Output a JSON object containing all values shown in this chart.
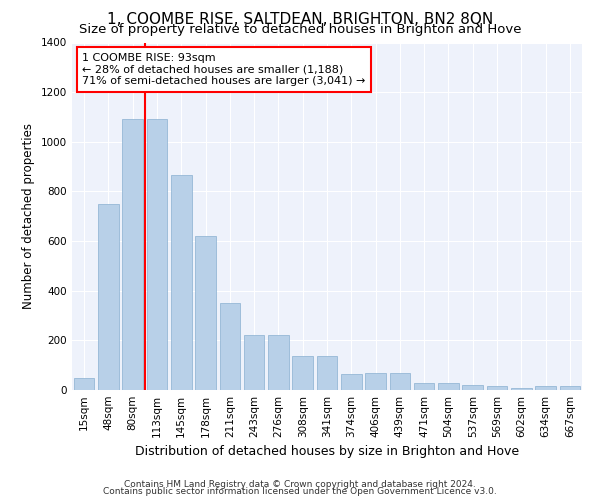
{
  "title": "1, COOMBE RISE, SALTDEAN, BRIGHTON, BN2 8QN",
  "subtitle": "Size of property relative to detached houses in Brighton and Hove",
  "xlabel": "Distribution of detached houses by size in Brighton and Hove",
  "ylabel": "Number of detached properties",
  "footnote1": "Contains HM Land Registry data © Crown copyright and database right 2024.",
  "footnote2": "Contains public sector information licensed under the Open Government Licence v3.0.",
  "categories": [
    "15sqm",
    "48sqm",
    "80sqm",
    "113sqm",
    "145sqm",
    "178sqm",
    "211sqm",
    "243sqm",
    "276sqm",
    "308sqm",
    "341sqm",
    "374sqm",
    "406sqm",
    "439sqm",
    "471sqm",
    "504sqm",
    "537sqm",
    "569sqm",
    "602sqm",
    "634sqm",
    "667sqm"
  ],
  "values": [
    50,
    750,
    1090,
    1090,
    865,
    620,
    350,
    220,
    220,
    135,
    135,
    65,
    70,
    70,
    30,
    30,
    20,
    15,
    10,
    15,
    15
  ],
  "bar_color": "#b8d0e8",
  "bar_edge_color": "#8ab0d0",
  "vline_x": 2.5,
  "vline_color": "red",
  "annotation_text": "1 COOMBE RISE: 93sqm\n← 28% of detached houses are smaller (1,188)\n71% of semi-detached houses are larger (3,041) →",
  "annotation_box_color": "white",
  "annotation_box_edge": "red",
  "ylim": [
    0,
    1400
  ],
  "yticks": [
    0,
    200,
    400,
    600,
    800,
    1000,
    1200,
    1400
  ],
  "bg_color": "#eef2fb",
  "grid_color": "#ffffff",
  "title_fontsize": 11,
  "subtitle_fontsize": 9.5,
  "xlabel_fontsize": 9,
  "ylabel_fontsize": 8.5,
  "tick_fontsize": 7.5,
  "annot_fontsize": 8,
  "footnote_fontsize": 6.5
}
